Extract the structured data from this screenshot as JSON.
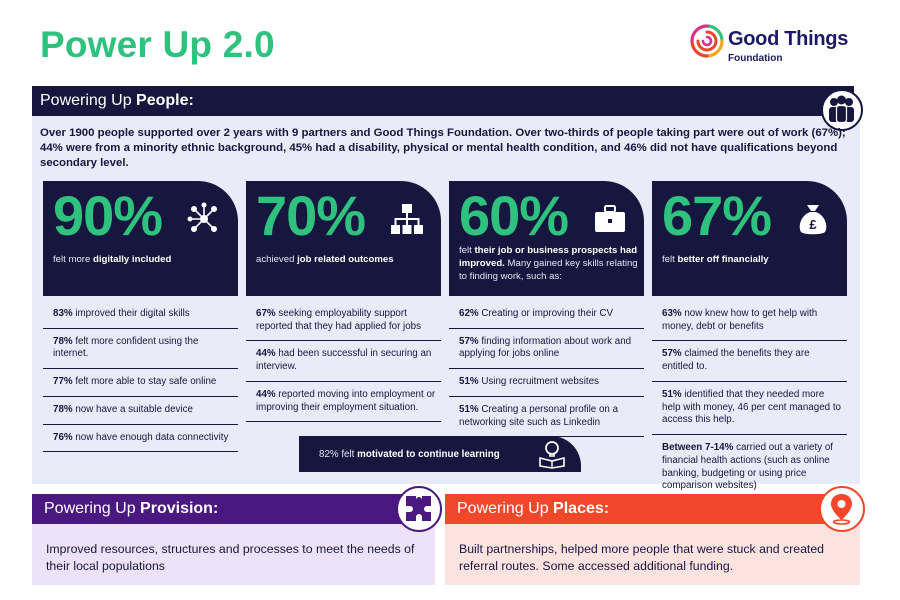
{
  "title": "Power Up 2.0",
  "logo": {
    "name": "Good Things",
    "sub": "Foundation",
    "icon": "spiral-logo-icon"
  },
  "people": {
    "heading_prefix": "Powering Up ",
    "heading_bold": "People:",
    "icon": "people-group-icon",
    "intro": "Over 1900 people supported over 2 years with 9 partners and Good Things Foundation. Over two-thirds of people taking part were out of work (67%); 44% were from a minority ethnic background, 45% had a disability, physical or mental health condition, and 46% did not have qualifications beyond secondary level.",
    "columns": [
      {
        "pct": "90%",
        "icon": "digital-network-icon",
        "desc_pre": "felt more ",
        "desc_bold": "digitally included",
        "desc_post": "",
        "items": [
          {
            "bold": "83%",
            "text": " improved their digital skills"
          },
          {
            "bold": "78%",
            "text": " felt more confident using the internet."
          },
          {
            "bold": "77%",
            "text": " felt more able to stay safe online"
          },
          {
            "bold": "78%",
            "text": " now have a suitable device"
          },
          {
            "bold": "76%",
            "text": " now have enough data connectivity"
          }
        ]
      },
      {
        "pct": "70%",
        "icon": "org-chart-icon",
        "desc_pre": "achieved ",
        "desc_bold": "job related outcomes",
        "desc_post": "",
        "items": [
          {
            "bold": "67%",
            "text": " seeking employability support reported that they had applied for jobs"
          },
          {
            "bold": "44%",
            "text": " had been successful in securing an interview."
          },
          {
            "bold": "44%",
            "text": " reported moving into employment or improving their employment situation."
          }
        ]
      },
      {
        "pct": "60%",
        "icon": "briefcase-icon",
        "desc_pre": "felt ",
        "desc_bold": "their job or business prospects had improved.",
        "desc_post": " Many gained key skills relating to finding work, such as:",
        "items": [
          {
            "bold": "62%",
            "text": " Creating or improving their CV"
          },
          {
            "bold": "57%",
            "text": " finding information about work and applying for jobs online"
          },
          {
            "bold": "51%",
            "text": " Using recruitment websites"
          },
          {
            "bold": "51%",
            "text": " Creating a personal profile on a networking site such as Linkedin"
          }
        ]
      },
      {
        "pct": "67%",
        "icon": "money-bag-icon",
        "desc_pre": "felt ",
        "desc_bold": "better off financially",
        "desc_post": "",
        "items": [
          {
            "bold": "63%",
            "text": " now knew how to get help with money, debt or benefits"
          },
          {
            "bold": "57%",
            "text": " claimed the benefits they are entitled to."
          },
          {
            "bold": "51%",
            "text": " identified that they needed more help with money, 46 per cent managed to access this help."
          },
          {
            "bold": "Between 7-14%",
            "text": " carried out a variety of financial health actions (such as online banking, budgeting or using price comparison websites)"
          }
        ]
      }
    ],
    "learning": {
      "pre": "82% felt ",
      "bold": "motivated to continue learning",
      "icon": "lightbulb-book-icon"
    }
  },
  "provision": {
    "heading_prefix": "Powering Up ",
    "heading_bold": "Provision:",
    "icon": "puzzle-icon",
    "body": "Improved resources, structures and processes to meet the needs of their local populations"
  },
  "places": {
    "heading_prefix": "Powering Up ",
    "heading_bold": "Places:",
    "icon": "map-pin-icon",
    "body": "Built partnerships, helped more people that were stuck and created referral routes.  Some accessed additional funding."
  },
  "colors": {
    "navy": "#16163f",
    "green": "#2ec27e",
    "purple": "#4b1781",
    "red": "#f2472a",
    "panel_blue": "#e9ecf8",
    "panel_purple": "#ede2f7",
    "panel_red": "#fde3df"
  }
}
